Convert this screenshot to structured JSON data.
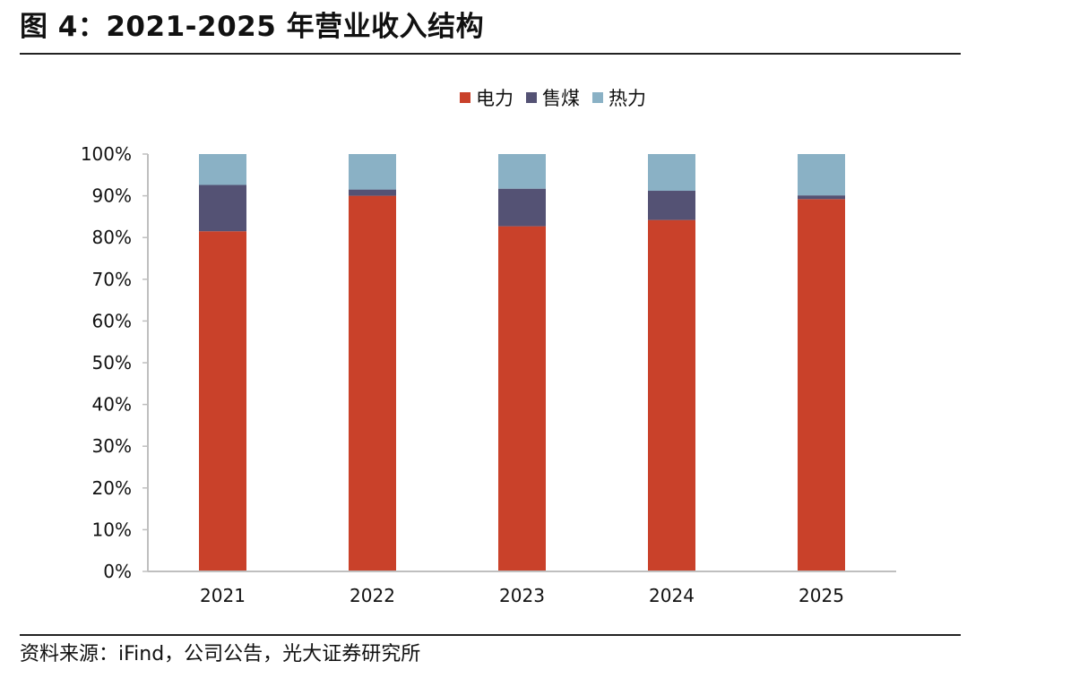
{
  "figure": {
    "title": "图 4：2021-2025 年营业收入结构",
    "source": "资料来源：iFind，公司公告，光大证券研究所"
  },
  "chart_data": {
    "type": "bar",
    "stacked": true,
    "percent": true,
    "categories": [
      "2021",
      "2022",
      "2023",
      "2024",
      "2025"
    ],
    "series": [
      {
        "name": "电力",
        "color": "#C9412A",
        "values": [
          81.5,
          90.0,
          82.7,
          84.2,
          89.2
        ]
      },
      {
        "name": "售煤",
        "color": "#545274",
        "values": [
          11.1,
          1.5,
          9.0,
          7.0,
          0.9
        ]
      },
      {
        "name": "热力",
        "color": "#8AB1C5",
        "values": [
          7.4,
          8.5,
          8.3,
          8.8,
          9.9
        ]
      }
    ],
    "ylim": [
      0,
      100
    ],
    "yticks": [
      "0%",
      "10%",
      "20%",
      "30%",
      "40%",
      "50%",
      "60%",
      "70%",
      "80%",
      "90%",
      "100%"
    ],
    "legend": "top-center",
    "grid": false
  }
}
